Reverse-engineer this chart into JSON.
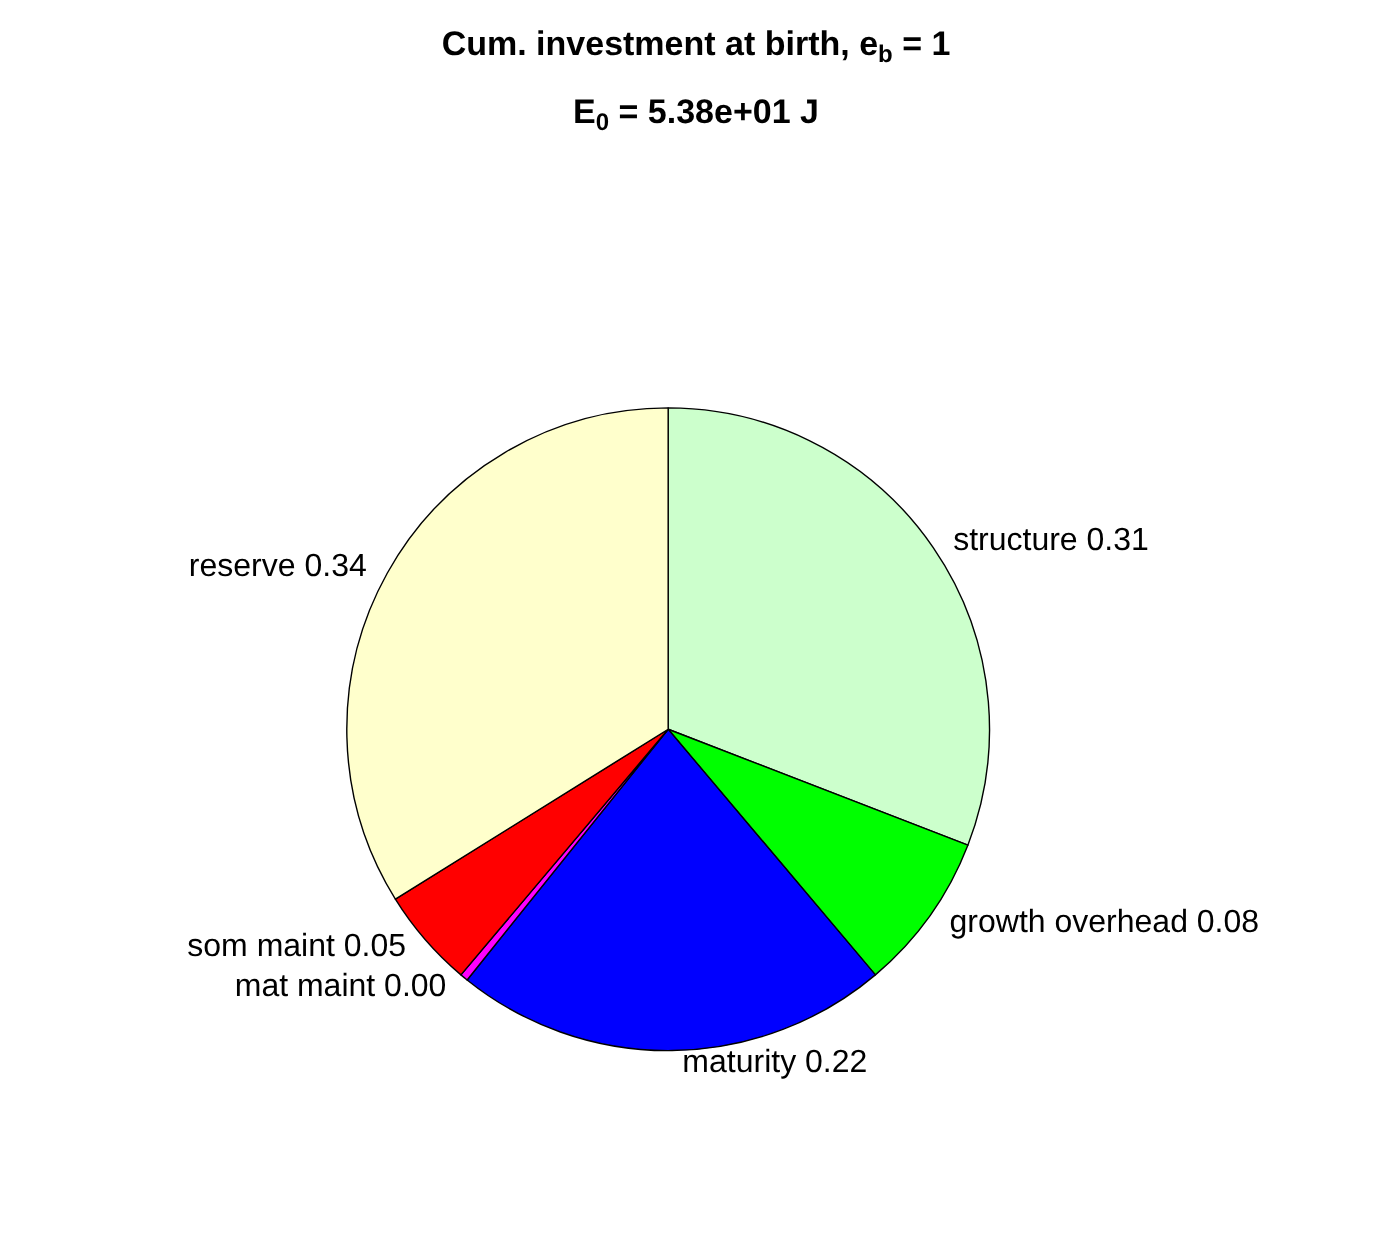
{
  "chart_data": {
    "type": "pie",
    "title": "Cum. investment at birth, e$_{b}$ = 1",
    "subtitle": "E$_{0}$ = 5.38e+01 J",
    "categories": [
      "structure",
      "growth overhead",
      "maturity",
      "mat maint",
      "som maint",
      "reserve"
    ],
    "values": [
      0.31,
      0.08,
      0.22,
      0.004,
      0.05,
      0.34
    ],
    "value_labels": [
      "0.31",
      "0.08",
      "0.22",
      "0.00",
      "0.05",
      "0.34"
    ],
    "colors": [
      "#ccffcc",
      "#00ff00",
      "#0000ff",
      "#ff00ff",
      "#ff0000",
      "#ffffcc"
    ],
    "legend": false
  }
}
